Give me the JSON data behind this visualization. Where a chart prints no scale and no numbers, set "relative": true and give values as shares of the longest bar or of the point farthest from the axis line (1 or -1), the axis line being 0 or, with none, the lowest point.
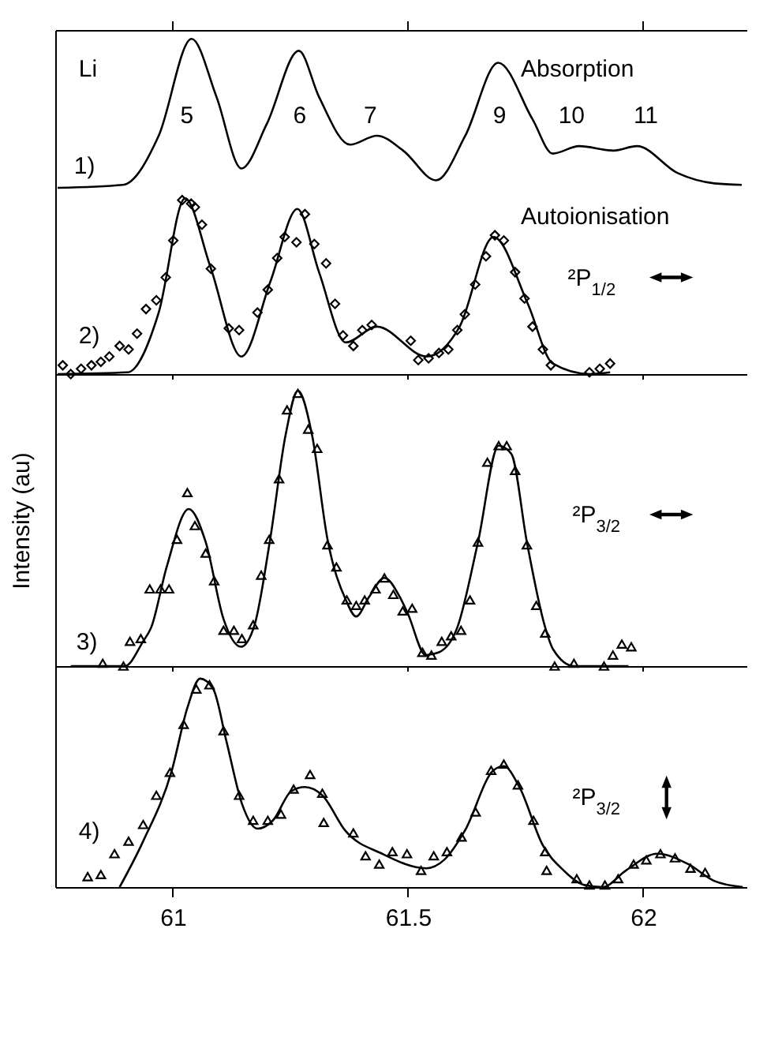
{
  "chart_data": [
    {
      "type": "line",
      "relative": true,
      "xlim": [
        60.75,
        62.22
      ],
      "xticks": [
        61,
        61.5,
        62
      ],
      "tick_labels": false,
      "annotations": [
        "Li",
        "Absorption",
        "1)",
        "5",
        "6",
        "7",
        "9",
        "10",
        "11"
      ],
      "series": [
        {
          "color": "#000000",
          "x": [
            60.755,
            60.894,
            60.97,
            61.04,
            61.093,
            61.146,
            61.2,
            61.268,
            61.311,
            61.377,
            61.434,
            61.49,
            61.56,
            61.622,
            61.692,
            61.765,
            61.808,
            61.864,
            61.937,
            61.987,
            62.073,
            62.152,
            62.21
          ],
          "values": [
            0,
            0.02,
            0.35,
            1,
            0.61,
            0.13,
            0.43,
            0.92,
            0.61,
            0.29,
            0.35,
            0.25,
            0.05,
            0.35,
            0.84,
            0.46,
            0.23,
            0.28,
            0.25,
            0.28,
            0.1,
            0.03,
            0.02
          ]
        }
      ]
    },
    {
      "type": "line",
      "relative": true,
      "xlim": [
        60.75,
        62.22
      ],
      "xticks": [
        61,
        61.5,
        62
      ],
      "tick_labels": false,
      "annotations": [
        "Autoionisation",
        "2)",
        "²P$_{1/2}$"
      ],
      "series": [
        {
          "color": "#000000",
          "x": [
            60.755,
            60.904,
            60.97,
            61.026,
            61.08,
            61.146,
            61.208,
            61.265,
            61.311,
            61.368,
            61.434,
            61.54,
            61.61,
            61.682,
            61.755,
            61.808,
            61.887,
            61.93
          ],
          "values": [
            0,
            0.01,
            0.35,
            1,
            0.61,
            0.1,
            0.53,
            0.94,
            0.58,
            0.18,
            0.27,
            0.1,
            0.27,
            0.78,
            0.4,
            0.06,
            0,
            0.01
          ]
        },
        {
          "type": "scatter",
          "marker": "diamond",
          "color": "#000000",
          "x": [
            60.766,
            60.783,
            60.805,
            60.827,
            60.847,
            60.865,
            60.887,
            60.906,
            60.924,
            60.943,
            60.965,
            60.985,
            61.001,
            61.02,
            61.039,
            61.047,
            61.062,
            61.081,
            61.119,
            61.141,
            61.18,
            61.202,
            61.222,
            61.238,
            61.263,
            61.281,
            61.301,
            61.326,
            61.345,
            61.362,
            61.384,
            61.403,
            61.423,
            61.506,
            61.522,
            61.544,
            61.566,
            61.586,
            61.605,
            61.621,
            61.643,
            61.666,
            61.685,
            61.704,
            61.728,
            61.748,
            61.765,
            61.787,
            61.804,
            61.886,
            61.908,
            61.93
          ],
          "values": [
            0.05,
            0,
            0.03,
            0.05,
            0.07,
            0.1,
            0.16,
            0.14,
            0.23,
            0.37,
            0.42,
            0.55,
            0.76,
            0.99,
            0.97,
            0.95,
            0.85,
            0.6,
            0.26,
            0.25,
            0.35,
            0.48,
            0.66,
            0.78,
            0.75,
            0.91,
            0.74,
            0.63,
            0.4,
            0.22,
            0.16,
            0.25,
            0.28,
            0.19,
            0.08,
            0.09,
            0.12,
            0.14,
            0.25,
            0.34,
            0.51,
            0.67,
            0.79,
            0.76,
            0.58,
            0.43,
            0.27,
            0.14,
            0.05,
            0.01,
            0.03,
            0.06
          ]
        }
      ]
    },
    {
      "type": "line",
      "relative": true,
      "xlim": [
        60.75,
        62.22
      ],
      "xticks": [
        61,
        61.5,
        62
      ],
      "tick_labels": false,
      "ylabel": "Intensity (au)",
      "annotations": [
        "3)",
        "²P$_{3/2}$"
      ],
      "series": [
        {
          "color": "#000000",
          "x": [
            60.783,
            60.898,
            60.937,
            60.954,
            60.987,
            61.034,
            61.07,
            61.108,
            61.145,
            61.174,
            61.207,
            61.24,
            61.266,
            61.296,
            61.329,
            61.368,
            61.39,
            61.417,
            61.45,
            61.483,
            61.5,
            61.538,
            61.566,
            61.605,
            61.649,
            61.693,
            61.72,
            61.753,
            61.792,
            61.809,
            61.853,
            61.969
          ],
          "values": [
            0,
            0,
            0.09,
            0.14,
            0.36,
            0.57,
            0.45,
            0.17,
            0.07,
            0.15,
            0.46,
            0.84,
            1,
            0.84,
            0.46,
            0.24,
            0.18,
            0.25,
            0.32,
            0.25,
            0.19,
            0.04,
            0.05,
            0.14,
            0.45,
            0.8,
            0.77,
            0.45,
            0.14,
            0.06,
            0,
            0
          ]
        },
        {
          "type": "scatter",
          "marker": "triangle",
          "color": "#000000",
          "x": [
            60.851,
            60.895,
            60.909,
            60.932,
            60.951,
            60.974,
            60.992,
            61.009,
            61.031,
            61.047,
            61.07,
            61.088,
            61.108,
            61.13,
            61.147,
            61.171,
            61.188,
            61.205,
            61.226,
            61.243,
            61.266,
            61.288,
            61.307,
            61.329,
            61.348,
            61.37,
            61.39,
            61.408,
            61.431,
            61.45,
            61.469,
            61.489,
            61.509,
            61.531,
            61.55,
            61.572,
            61.592,
            61.613,
            61.632,
            61.649,
            61.669,
            61.693,
            61.71,
            61.728,
            61.753,
            61.773,
            61.792,
            61.812,
            61.853,
            61.917,
            61.936,
            61.955,
            61.975
          ],
          "values": [
            0.01,
            0,
            0.09,
            0.1,
            0.28,
            0.28,
            0.28,
            0.46,
            0.63,
            0.51,
            0.41,
            0.31,
            0.13,
            0.13,
            0.1,
            0.15,
            0.33,
            0.46,
            0.68,
            0.93,
            0.99,
            0.86,
            0.79,
            0.44,
            0.36,
            0.24,
            0.22,
            0.24,
            0.28,
            0.32,
            0.26,
            0.2,
            0.21,
            0.05,
            0.04,
            0.09,
            0.11,
            0.13,
            0.24,
            0.45,
            0.74,
            0.8,
            0.8,
            0.71,
            0.44,
            0.22,
            0.12,
            0,
            0.01,
            0,
            0.04,
            0.08,
            0.07
          ]
        }
      ]
    },
    {
      "type": "line",
      "relative": true,
      "xlim": [
        60.75,
        62.22
      ],
      "xticks": [
        61,
        61.5,
        62
      ],
      "tick_labels": "x",
      "annotations": [
        "4)",
        "²P$_{3/2}$"
      ],
      "series": [
        {
          "color": "#000000",
          "x": [
            60.887,
            60.937,
            60.998,
            61.031,
            61.058,
            61.086,
            61.114,
            61.147,
            61.18,
            61.213,
            61.252,
            61.281,
            61.318,
            61.367,
            61.445,
            61.539,
            61.577,
            61.621,
            61.682,
            61.704,
            61.737,
            61.787,
            61.831,
            61.875,
            61.914,
            61.964,
            62.03,
            62.096,
            62.151,
            62.212
          ],
          "values": [
            0,
            0.22,
            0.56,
            0.86,
            1,
            0.95,
            0.7,
            0.4,
            0.28,
            0.32,
            0.46,
            0.48,
            0.44,
            0.27,
            0.16,
            0.09,
            0.13,
            0.27,
            0.56,
            0.58,
            0.48,
            0.2,
            0.08,
            0.01,
            0,
            0.08,
            0.16,
            0.11,
            0.03,
            0
          ]
        },
        {
          "type": "scatter",
          "marker": "triangle",
          "color": "#000000",
          "x": [
            60.819,
            60.847,
            60.876,
            60.906,
            60.937,
            60.965,
            60.994,
            61.023,
            61.05,
            61.078,
            61.108,
            61.141,
            61.171,
            61.202,
            61.23,
            61.257,
            61.292,
            61.318,
            61.321,
            61.384,
            61.41,
            61.439,
            61.467,
            61.498,
            61.528,
            61.555,
            61.583,
            61.614,
            61.644,
            61.677,
            61.704,
            61.734,
            61.767,
            61.792,
            61.795,
            61.859,
            61.886,
            61.919,
            61.947,
            61.98,
            62.007,
            62.037,
            62.068,
            62.101,
            62.132
          ],
          "values": [
            0.05,
            0.06,
            0.16,
            0.22,
            0.3,
            0.44,
            0.55,
            0.78,
            0.95,
            0.97,
            0.75,
            0.44,
            0.32,
            0.32,
            0.35,
            0.47,
            0.54,
            0.45,
            0.31,
            0.26,
            0.15,
            0.11,
            0.17,
            0.16,
            0.08,
            0.15,
            0.17,
            0.24,
            0.36,
            0.56,
            0.59,
            0.49,
            0.32,
            0.17,
            0.08,
            0.04,
            0.01,
            0.01,
            0.04,
            0.11,
            0.13,
            0.16,
            0.14,
            0.09,
            0.07
          ]
        }
      ]
    }
  ]
}
